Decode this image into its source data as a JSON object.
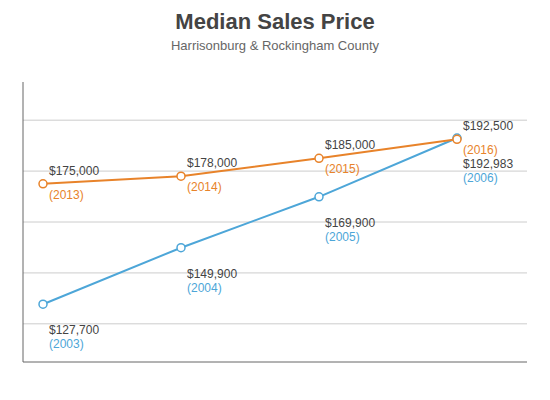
{
  "chart_data": {
    "type": "line",
    "title": "Median Sales Price",
    "subtitle": "Harrisonburg & Rockingham County",
    "categories": [
      null,
      null,
      null,
      null
    ],
    "series": [
      {
        "color": "#4da6d8",
        "values": [
          127700,
          149900,
          169900,
          192983
        ],
        "value_labels": [
          "$127,700",
          "$149,900",
          "$169,900",
          "$192,983"
        ],
        "annotations": [
          "(2003)",
          "(2004)",
          "(2005)",
          "(2006)"
        ]
      },
      {
        "color": "#e8832a",
        "values": [
          175000,
          178000,
          185000,
          192500
        ],
        "value_labels": [
          "$175,000",
          "$178,000",
          "$185,000",
          "$192,500"
        ],
        "annotations": [
          "(2013)",
          "(2014)",
          "(2015)",
          "(2016)"
        ]
      }
    ],
    "ylim": [
      105000,
      215000
    ],
    "yticks": [
      120000,
      140000,
      160000,
      180000,
      200000
    ],
    "grid": true,
    "data_labels": true,
    "tick_labels": false
  }
}
